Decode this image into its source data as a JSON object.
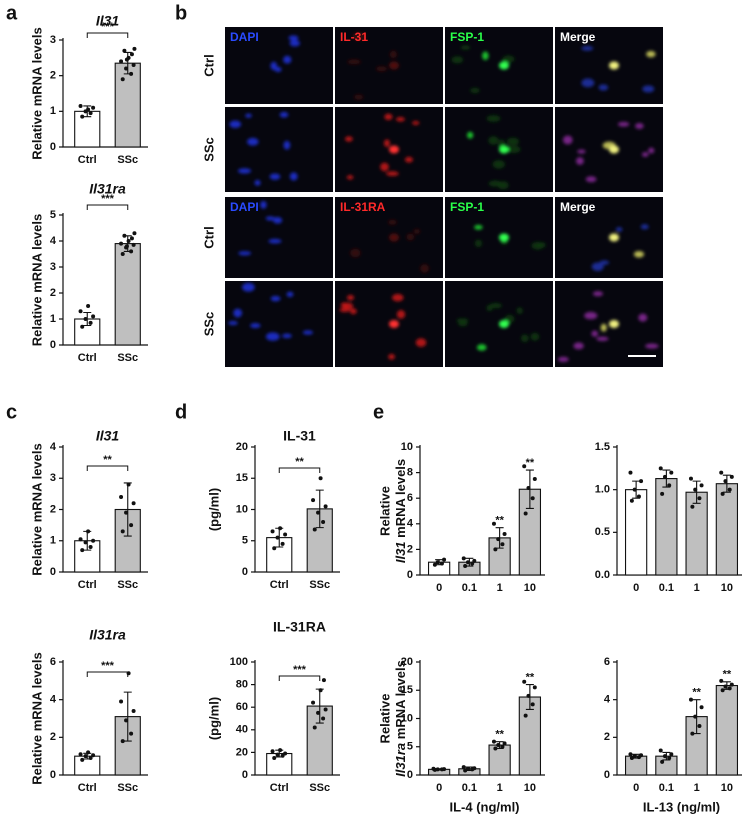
{
  "panel_labels": [
    "a",
    "b",
    "c",
    "d",
    "e"
  ],
  "micrographs": [
    {
      "columns": [
        "DAPI",
        "IL-31",
        "FSP-1",
        "Merge"
      ],
      "rows": [
        "Ctrl",
        "SSc"
      ]
    },
    {
      "columns": [
        "DAPI",
        "IL-31RA",
        "FSP-1",
        "Merge"
      ],
      "rows": [
        "Ctrl",
        "SSc"
      ]
    }
  ],
  "chart_data": [
    {
      "type": "bar",
      "title": "Il31",
      "ylabel": "Relative mRNA levels",
      "categories": [
        "Ctrl",
        "SSc"
      ],
      "values": [
        1.0,
        2.35
      ],
      "errors": [
        0.15,
        0.3
      ],
      "colors": [
        "#ffffff",
        "#bfbfbf"
      ],
      "points": [
        [
          0.85,
          0.95,
          1.0,
          1.1,
          1.15,
          1.05
        ],
        [
          1.9,
          2.05,
          2.2,
          2.3,
          2.4,
          2.5,
          2.6,
          2.7,
          2.75,
          2.45
        ]
      ],
      "significance": "***",
      "ylim": [
        0,
        3
      ],
      "yticks": [
        0,
        1,
        2,
        3
      ]
    },
    {
      "type": "bar",
      "title": "Il31ra",
      "ylabel": "Relative mRNA levels",
      "categories": [
        "Ctrl",
        "SSc"
      ],
      "values": [
        1.0,
        3.9
      ],
      "errors": [
        0.25,
        0.3
      ],
      "colors": [
        "#ffffff",
        "#bfbfbf"
      ],
      "points": [
        [
          0.7,
          0.85,
          1.0,
          1.1,
          1.3,
          1.5
        ],
        [
          3.5,
          3.6,
          3.75,
          3.85,
          3.9,
          4.0,
          4.1,
          4.2,
          4.3,
          3.8
        ]
      ],
      "significance": "***",
      "ylim": [
        0,
        5
      ],
      "yticks": [
        0,
        1,
        2,
        3,
        4,
        5
      ]
    },
    {
      "type": "bar",
      "title": "Il31",
      "ylabel": "Relative mRNA levels",
      "categories": [
        "Ctrl",
        "SSc"
      ],
      "values": [
        1.0,
        2.0
      ],
      "errors": [
        0.3,
        0.85
      ],
      "colors": [
        "#ffffff",
        "#bfbfbf"
      ],
      "points": [
        [
          0.7,
          0.8,
          0.95,
          1.0,
          1.05,
          1.3
        ],
        [
          1.3,
          1.5,
          1.9,
          2.2,
          2.4,
          2.8
        ]
      ],
      "significance": "**",
      "ylim": [
        0,
        4
      ],
      "yticks": [
        0,
        1,
        2,
        3,
        4
      ]
    },
    {
      "type": "bar",
      "title": "Il31ra",
      "ylabel": "Relative mRNA levels",
      "categories": [
        "Ctrl",
        "SSc"
      ],
      "values": [
        1.0,
        3.1
      ],
      "errors": [
        0.15,
        1.3
      ],
      "colors": [
        "#ffffff",
        "#bfbfbf"
      ],
      "points": [
        [
          0.8,
          0.9,
          1.0,
          1.05,
          1.1,
          1.2
        ],
        [
          1.8,
          2.2,
          2.9,
          3.4,
          3.9,
          5.4
        ]
      ],
      "significance": "***",
      "ylim": [
        0,
        6
      ],
      "yticks": [
        0,
        2,
        4,
        6
      ]
    },
    {
      "type": "bar",
      "title": "IL-31",
      "ylabel": "(pg/ml)",
      "categories": [
        "Ctrl",
        "SSc"
      ],
      "values": [
        5.5,
        10.1
      ],
      "errors": [
        1.5,
        3.0
      ],
      "colors": [
        "#ffffff",
        "#bfbfbf"
      ],
      "points": [
        [
          3.8,
          4.5,
          5.5,
          6.0,
          6.5,
          7.0
        ],
        [
          6.8,
          8.0,
          9.5,
          10.5,
          11.5,
          15
        ]
      ],
      "significance": "**",
      "ylim": [
        0,
        20
      ],
      "yticks": [
        0,
        5,
        10,
        15,
        20
      ]
    },
    {
      "type": "bar",
      "title": "IL-31RA",
      "ylabel": "(pg/ml)",
      "categories": [
        "Ctrl",
        "SSc"
      ],
      "values": [
        19,
        61
      ],
      "errors": [
        3,
        15
      ],
      "colors": [
        "#ffffff",
        "#bfbfbf"
      ],
      "points": [
        [
          15,
          17,
          18,
          19,
          21,
          22
        ],
        [
          42,
          50,
          55,
          58,
          64,
          75,
          84
        ]
      ],
      "significance": "***",
      "ylim": [
        0,
        100
      ],
      "yticks": [
        0,
        20,
        40,
        60,
        80,
        100
      ]
    },
    {
      "type": "bar",
      "ylabel": [
        "Relative",
        "Il31",
        "mRNA levels"
      ],
      "categories": [
        "0",
        "0.1",
        "1",
        "10"
      ],
      "values": [
        1.0,
        1.0,
        2.9,
        6.7
      ],
      "errors": [
        0.2,
        0.3,
        0.8,
        1.5
      ],
      "colors": [
        "#ffffff",
        "#bfbfbf",
        "#bfbfbf",
        "#bfbfbf"
      ],
      "points": [
        [
          0.8,
          0.9,
          1.0,
          1.2
        ],
        [
          0.7,
          0.9,
          1.0,
          1.1,
          1.3
        ],
        [
          2.0,
          2.4,
          2.8,
          3.2,
          4.0
        ],
        [
          4.8,
          6.0,
          6.8,
          7.5,
          8.5
        ]
      ],
      "stars": [
        null,
        null,
        "**",
        "**"
      ],
      "ylim": [
        0,
        10
      ],
      "yticks": [
        0,
        2,
        4,
        6,
        8,
        10
      ]
    },
    {
      "type": "bar",
      "categories": [
        "0",
        "0.1",
        "1",
        "10"
      ],
      "values": [
        1.0,
        1.13,
        0.97,
        1.07
      ],
      "errors": [
        0.1,
        0.1,
        0.13,
        0.1
      ],
      "colors": [
        "#ffffff",
        "#bfbfbf",
        "#bfbfbf",
        "#bfbfbf"
      ],
      "points": [
        [
          0.87,
          0.92,
          1.0,
          1.1,
          1.2
        ],
        [
          0.95,
          1.05,
          1.15,
          1.2,
          1.25
        ],
        [
          0.8,
          0.9,
          1.0,
          1.05,
          1.13
        ],
        [
          0.95,
          1.0,
          1.1,
          1.15,
          1.2
        ]
      ],
      "ylim": [
        0,
        1.5
      ],
      "yticks": [
        {
          "value": 0,
          "label": "0.0"
        },
        0.5,
        {
          "value": 1,
          "label": "1.0"
        },
        1.5
      ]
    },
    {
      "type": "bar",
      "ylabel": [
        "Relative",
        "Il31ra",
        "mRNA levels"
      ],
      "xlabel": "IL-4 (ng/ml)",
      "categories": [
        "0",
        "0.1",
        "1",
        "10"
      ],
      "values": [
        1.0,
        1.1,
        5.3,
        13.8
      ],
      "errors": [
        0.1,
        0.3,
        0.6,
        2.2
      ],
      "colors": [
        "#bfbfbf",
        "#bfbfbf",
        "#bfbfbf",
        "#bfbfbf"
      ],
      "points": [
        [
          0.9,
          1.0,
          1.0,
          1.05,
          1.1
        ],
        [
          0.8,
          1.0,
          1.1,
          1.2,
          1.4
        ],
        [
          4.7,
          5.0,
          5.3,
          5.6,
          5.9
        ],
        [
          10.5,
          12.5,
          14,
          15.5,
          16.5
        ]
      ],
      "stars": [
        null,
        null,
        "**",
        "**"
      ],
      "ylim": [
        0,
        20
      ],
      "yticks": [
        0,
        5,
        10,
        15,
        20
      ]
    },
    {
      "type": "bar",
      "xlabel": "IL-13 (ng/ml)",
      "categories": [
        "0",
        "0.1",
        "1",
        "10"
      ],
      "values": [
        1.0,
        1.0,
        3.1,
        4.75
      ],
      "errors": [
        0.1,
        0.2,
        0.9,
        0.2
      ],
      "colors": [
        "#bfbfbf",
        "#bfbfbf",
        "#bfbfbf",
        "#bfbfbf"
      ],
      "points": [
        [
          0.9,
          0.95,
          1.0,
          1.05,
          1.1
        ],
        [
          0.7,
          0.9,
          1.0,
          1.1,
          1.3
        ],
        [
          2.2,
          2.6,
          3.1,
          3.6,
          4.0
        ],
        [
          4.5,
          4.6,
          4.7,
          4.8,
          5.0
        ]
      ],
      "stars": [
        null,
        null,
        "**",
        "**"
      ],
      "ylim": [
        0,
        6
      ],
      "yticks": [
        0,
        2,
        4,
        6
      ]
    }
  ]
}
